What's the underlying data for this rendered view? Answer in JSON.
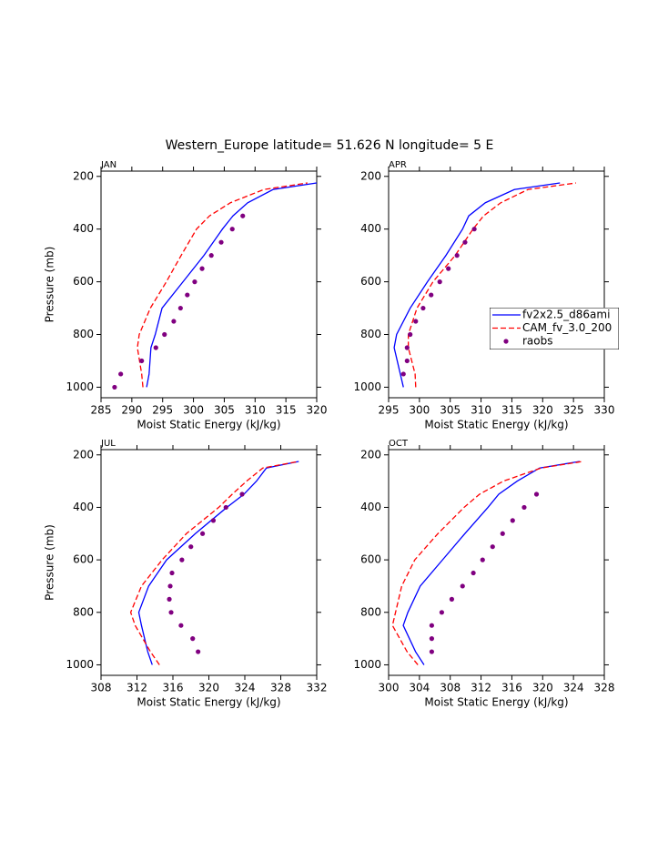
{
  "title": "Western_Europe  latitude= 51.626 N longitude= 5 E",
  "chart_data": [
    {
      "type": "line",
      "title": "JAN",
      "xlabel": "Moist Static Energy (kJ/kg)",
      "ylabel": "Pressure (mb)",
      "xlim": [
        285,
        320
      ],
      "xticks": [
        285,
        290,
        295,
        300,
        305,
        310,
        315,
        320
      ],
      "ylim": [
        1040,
        180
      ],
      "yticks": [
        200,
        400,
        600,
        800,
        1000
      ],
      "series": [
        {
          "color": "#0000ff",
          "dash": false,
          "mode": "line",
          "values": [
            292.4,
            292.8,
            293.1,
            293.8,
            294.9,
            298.3,
            301.7,
            304.7,
            306.4,
            308.8,
            312.9,
            320
          ],
          "pressure": [
            1000,
            950,
            850,
            800,
            700,
            600,
            500,
            400,
            350,
            300,
            250,
            225
          ]
        },
        {
          "color": "#ff0000",
          "dash": true,
          "mode": "line",
          "values": [
            291.8,
            291.6,
            290.9,
            291.2,
            293,
            295.6,
            298,
            300.5,
            302.6,
            306,
            311.4,
            318.5
          ],
          "pressure": [
            1000,
            950,
            850,
            800,
            700,
            600,
            500,
            400,
            350,
            300,
            250,
            225
          ]
        },
        {
          "color": "#800080",
          "dash": false,
          "mode": "markers",
          "values": [
            287.2,
            288.2,
            291.6,
            293.9,
            295.3,
            296.8,
            297.9,
            299,
            300.2,
            301.4,
            302.9,
            304.5,
            306.3,
            308
          ],
          "pressure": [
            1000,
            950,
            900,
            850,
            800,
            750,
            700,
            650,
            600,
            550,
            500,
            450,
            400,
            350
          ]
        }
      ]
    },
    {
      "type": "line",
      "title": "APR",
      "xlabel": "Moist Static Energy (kJ/kg)",
      "xlim": [
        295,
        330
      ],
      "xticks": [
        295,
        300,
        305,
        310,
        315,
        320,
        325,
        330
      ],
      "ylim": [
        1040,
        180
      ],
      "yticks": [
        200,
        400,
        600,
        800,
        1000
      ],
      "legend": "right",
      "series": [
        {
          "name": "fv2x2.5_d86ami",
          "color": "#0000ff",
          "dash": false,
          "mode": "line",
          "values": [
            297.4,
            296.9,
            295.9,
            296.3,
            298.5,
            301.3,
            304.3,
            307,
            308,
            310.7,
            315.4,
            322.8
          ],
          "pressure": [
            1000,
            950,
            850,
            800,
            700,
            600,
            500,
            400,
            350,
            300,
            250,
            225
          ]
        },
        {
          "name": "CAM_fv_3.0_200",
          "color": "#ff0000",
          "dash": true,
          "mode": "line",
          "values": [
            299.4,
            299.3,
            298.2,
            298.2,
            299.6,
            302.2,
            305.8,
            308.7,
            310.4,
            313.2,
            317.6,
            325.4
          ],
          "pressure": [
            1000,
            950,
            850,
            800,
            700,
            600,
            500,
            400,
            350,
            300,
            250,
            225
          ]
        },
        {
          "name": "raobs",
          "color": "#800080",
          "dash": false,
          "mode": "markers",
          "values": [
            297.4,
            298,
            298,
            298.5,
            299.4,
            300.6,
            301.9,
            303.3,
            304.7,
            306.1,
            307.4,
            308.9
          ],
          "pressure": [
            950,
            900,
            850,
            800,
            750,
            700,
            650,
            600,
            550,
            500,
            450,
            400
          ]
        }
      ]
    },
    {
      "type": "line",
      "title": "JUL",
      "xlabel": "Moist Static Energy (kJ/kg)",
      "ylabel": "Pressure (mb)",
      "xlim": [
        308,
        332
      ],
      "xticks": [
        308,
        312,
        316,
        320,
        324,
        328,
        332
      ],
      "ylim": [
        1040,
        180
      ],
      "yticks": [
        200,
        400,
        600,
        800,
        1000
      ],
      "series": [
        {
          "color": "#0000ff",
          "dash": false,
          "mode": "line",
          "values": [
            313.7,
            313.2,
            312.5,
            312.2,
            313.3,
            315.3,
            318.5,
            322,
            323.9,
            325.3,
            326.4,
            330
          ],
          "pressure": [
            1000,
            950,
            850,
            800,
            700,
            600,
            500,
            400,
            350,
            300,
            250,
            225
          ]
        },
        {
          "color": "#ff0000",
          "dash": true,
          "mode": "line",
          "values": [
            314.5,
            313.5,
            311.8,
            311.3,
            312.5,
            314.8,
            317.5,
            321.1,
            322.6,
            324.2,
            326,
            330
          ],
          "pressure": [
            1000,
            950,
            850,
            800,
            700,
            600,
            500,
            400,
            350,
            300,
            250,
            225
          ]
        },
        {
          "color": "#800080",
          "dash": false,
          "mode": "markers",
          "values": [
            318.8,
            318.2,
            316.9,
            315.8,
            315.6,
            315.7,
            315.9,
            317,
            318,
            319.3,
            320.5,
            321.9,
            323.7
          ],
          "pressure": [
            950,
            900,
            850,
            800,
            750,
            700,
            650,
            600,
            550,
            500,
            450,
            400,
            350
          ]
        }
      ]
    },
    {
      "type": "line",
      "title": "OCT",
      "xlabel": "Moist Static Energy (kJ/kg)",
      "xlim": [
        300,
        328
      ],
      "xticks": [
        300,
        304,
        308,
        312,
        316,
        320,
        324,
        328
      ],
      "ylim": [
        1040,
        180
      ],
      "yticks": [
        200,
        400,
        600,
        800,
        1000
      ],
      "series": [
        {
          "color": "#0000ff",
          "dash": false,
          "mode": "line",
          "values": [
            304.6,
            303.5,
            301.9,
            302.5,
            304.1,
            307,
            309.9,
            312.9,
            314.3,
            316.7,
            319.6,
            324.8
          ],
          "pressure": [
            1000,
            950,
            850,
            800,
            700,
            600,
            500,
            400,
            350,
            300,
            250,
            225
          ]
        },
        {
          "color": "#ff0000",
          "dash": true,
          "mode": "line",
          "values": [
            303.8,
            302.4,
            300.5,
            300.9,
            301.7,
            303.4,
            306.4,
            309.8,
            311.8,
            314.9,
            319.8,
            325.2
          ],
          "pressure": [
            1000,
            950,
            850,
            800,
            700,
            600,
            500,
            400,
            350,
            300,
            250,
            225
          ]
        },
        {
          "color": "#800080",
          "dash": false,
          "mode": "markers",
          "values": [
            305.6,
            305.6,
            305.6,
            306.9,
            308.2,
            309.6,
            311,
            312.2,
            313.5,
            314.8,
            316.1,
            317.6,
            319.2
          ],
          "pressure": [
            950,
            900,
            850,
            800,
            750,
            700,
            650,
            600,
            550,
            500,
            450,
            400,
            350
          ]
        }
      ]
    }
  ]
}
